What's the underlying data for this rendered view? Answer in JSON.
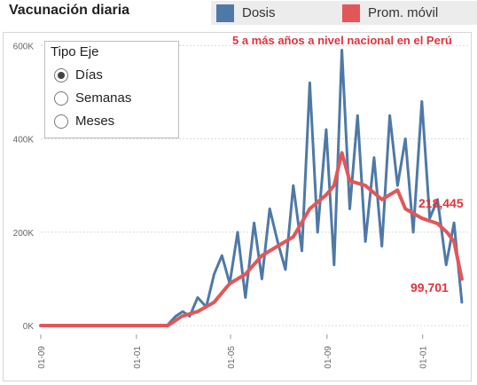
{
  "title": "Vacunación diaria",
  "legend": {
    "items": [
      {
        "label": "Dosis",
        "color": "#4e79a7"
      },
      {
        "label": "Prom. móvil",
        "color": "#e15759"
      }
    ]
  },
  "subtitle": "5 a más años a nivel nacional en el Perú",
  "axis_type": {
    "title": "Tipo Eje",
    "options": [
      {
        "label": "Días",
        "selected": true
      },
      {
        "label": "Semanas",
        "selected": false
      },
      {
        "label": "Meses",
        "selected": false
      }
    ]
  },
  "annotations": {
    "moving_avg_peak": "218,445",
    "last_value": "99,701"
  },
  "chart_data": {
    "type": "line",
    "title": "5 a más años a nivel nacional en el Perú",
    "xlabel": "",
    "ylabel": "",
    "y_ticks": [
      "0K",
      "200K",
      "400K",
      "600K"
    ],
    "y_tick_values": [
      0,
      200000,
      400000,
      600000
    ],
    "x_ticks": [
      "01-09",
      "01-01",
      "01-05",
      "01-09",
      "01-01"
    ],
    "x_tick_dates": [
      "2020-09-01",
      "2021-01-01",
      "2021-05-01",
      "2021-09-01",
      "2022-01-01"
    ],
    "x_range": [
      "2020-09-01",
      "2022-02-28"
    ],
    "ylim": [
      0,
      610000
    ],
    "grid": true,
    "legend_position": "top",
    "series": [
      {
        "name": "Dosis",
        "color": "#4e79a7",
        "x": [
          "2020-09-01",
          "2021-02-09",
          "2021-02-20",
          "2021-03-01",
          "2021-03-10",
          "2021-03-20",
          "2021-03-31",
          "2021-04-10",
          "2021-04-20",
          "2021-04-30",
          "2021-05-10",
          "2021-05-20",
          "2021-05-31",
          "2021-06-10",
          "2021-06-20",
          "2021-06-30",
          "2021-07-10",
          "2021-07-20",
          "2021-07-31",
          "2021-08-10",
          "2021-08-20",
          "2021-08-31",
          "2021-09-10",
          "2021-09-20",
          "2021-09-30",
          "2021-10-10",
          "2021-10-20",
          "2021-10-31",
          "2021-11-10",
          "2021-11-20",
          "2021-11-30",
          "2021-12-10",
          "2021-12-20",
          "2021-12-31",
          "2022-01-10",
          "2022-01-20",
          "2022-01-31",
          "2022-02-10",
          "2022-02-20"
        ],
        "values": [
          0,
          0,
          20000,
          30000,
          20000,
          60000,
          40000,
          110000,
          150000,
          90000,
          200000,
          60000,
          220000,
          100000,
          250000,
          180000,
          120000,
          300000,
          160000,
          520000,
          200000,
          420000,
          130000,
          590000,
          250000,
          450000,
          180000,
          360000,
          170000,
          450000,
          300000,
          400000,
          200000,
          480000,
          230000,
          270000,
          130000,
          220000,
          50000
        ]
      },
      {
        "name": "Prom. móvil",
        "color": "#e15759",
        "x": [
          "2020-09-01",
          "2021-02-10",
          "2021-02-28",
          "2021-03-20",
          "2021-04-10",
          "2021-04-30",
          "2021-05-20",
          "2021-06-10",
          "2021-06-30",
          "2021-07-20",
          "2021-08-10",
          "2021-08-31",
          "2021-09-10",
          "2021-09-20",
          "2021-09-30",
          "2021-10-20",
          "2021-11-10",
          "2021-11-30",
          "2021-12-10",
          "2021-12-31",
          "2022-01-20",
          "2022-02-01",
          "2022-02-10",
          "2022-02-20"
        ],
        "values": [
          0,
          0,
          20000,
          30000,
          50000,
          90000,
          110000,
          150000,
          170000,
          190000,
          250000,
          280000,
          300000,
          370000,
          310000,
          300000,
          270000,
          290000,
          250000,
          230000,
          218445,
          200000,
          180000,
          99701
        ]
      }
    ]
  }
}
